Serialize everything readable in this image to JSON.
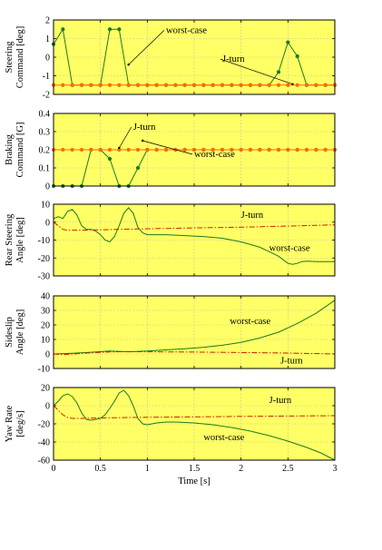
{
  "chart_data": [
    {
      "type": "line",
      "ylabel": [
        "Steering",
        "Command [deg]"
      ],
      "ylim": [
        -2,
        2
      ],
      "yticks": [
        "2",
        "1",
        "0",
        "-1",
        "-2"
      ],
      "grid": true,
      "series": [
        {
          "name": "worst-case",
          "color": "#1e7a1e",
          "markers": true,
          "x": [
            0,
            0.1,
            0.2,
            0.3,
            0.4,
            0.5,
            0.6,
            0.7,
            0.8,
            0.9,
            1.0,
            1.1,
            1.2,
            1.3,
            1.4,
            1.5,
            1.6,
            1.7,
            1.8,
            1.9,
            2.0,
            2.1,
            2.2,
            2.3,
            2.4,
            2.5,
            2.6,
            2.7,
            2.8,
            2.9,
            3.0
          ],
          "y": [
            0.7,
            1.5,
            -1.5,
            -1.5,
            -1.5,
            -1.5,
            1.5,
            1.5,
            -1.5,
            -1.5,
            -1.5,
            -1.5,
            -1.5,
            -1.5,
            -1.5,
            -1.5,
            -1.5,
            -1.5,
            -1.5,
            -1.5,
            -1.5,
            -1.5,
            -1.5,
            -1.5,
            -0.8,
            0.8,
            0.05,
            -1.5,
            -1.5,
            -1.5,
            -1.5
          ]
        },
        {
          "name": "J-turn",
          "color": "#ff6a00",
          "markers": true,
          "x": [
            0,
            0.1,
            0.2,
            0.3,
            0.4,
            0.5,
            0.6,
            0.7,
            0.8,
            0.9,
            1.0,
            1.1,
            1.2,
            1.3,
            1.4,
            1.5,
            1.6,
            1.7,
            1.8,
            1.9,
            2.0,
            2.1,
            2.2,
            2.3,
            2.4,
            2.5,
            2.6,
            2.7,
            2.8,
            2.9,
            3.0
          ],
          "y": [
            -1.5,
            -1.5,
            -1.5,
            -1.5,
            -1.5,
            -1.5,
            -1.5,
            -1.5,
            -1.5,
            -1.5,
            -1.5,
            -1.5,
            -1.5,
            -1.5,
            -1.5,
            -1.5,
            -1.5,
            -1.5,
            -1.5,
            -1.5,
            -1.5,
            -1.5,
            -1.5,
            -1.5,
            -1.5,
            -1.5,
            -1.5,
            -1.5,
            -1.5,
            -1.5,
            -1.5
          ]
        }
      ],
      "annotations": [
        {
          "text": "worst-case",
          "x": 1.2,
          "y": 1.3,
          "ax": 0.8,
          "ay": -0.4
        },
        {
          "text": "J-turn",
          "x": 1.8,
          "y": -0.25,
          "ax": 2.55,
          "ay": -1.45
        }
      ]
    },
    {
      "type": "line",
      "ylabel": [
        "Braking",
        "Command [G]"
      ],
      "ylim": [
        0,
        0.4
      ],
      "yticks": [
        "0.4",
        "0.3",
        "0.2",
        "0.1",
        "0"
      ],
      "grid": true,
      "series": [
        {
          "name": "worst-case",
          "color": "#1e7a1e",
          "markers": true,
          "x": [
            0,
            0.1,
            0.2,
            0.3,
            0.4,
            0.5,
            0.6,
            0.7,
            0.8,
            0.9,
            1.0,
            1.1,
            1.2,
            1.3,
            1.4,
            1.5,
            1.6,
            1.7,
            1.8,
            1.9,
            2.0,
            2.1,
            2.2,
            2.3,
            2.4,
            2.5,
            2.6,
            2.7,
            2.8,
            2.9,
            3.0
          ],
          "y": [
            0,
            0,
            0,
            0,
            0.2,
            0.2,
            0.15,
            0,
            0,
            0.1,
            0.2,
            0.2,
            0.2,
            0.2,
            0.2,
            0.2,
            0.2,
            0.2,
            0.2,
            0.2,
            0.2,
            0.2,
            0.2,
            0.2,
            0.2,
            0.2,
            0.2,
            0.2,
            0.2,
            0.2,
            0.2
          ]
        },
        {
          "name": "J-turn",
          "color": "#ff6a00",
          "markers": true,
          "x": [
            0,
            0.1,
            0.2,
            0.3,
            0.4,
            0.5,
            0.6,
            0.7,
            0.8,
            0.9,
            1.0,
            1.1,
            1.2,
            1.3,
            1.4,
            1.5,
            1.6,
            1.7,
            1.8,
            1.9,
            2.0,
            2.1,
            2.2,
            2.3,
            2.4,
            2.5,
            2.6,
            2.7,
            2.8,
            2.9,
            3.0
          ],
          "y": [
            0.2,
            0.2,
            0.2,
            0.2,
            0.2,
            0.2,
            0.2,
            0.2,
            0.2,
            0.2,
            0.2,
            0.2,
            0.2,
            0.2,
            0.2,
            0.2,
            0.2,
            0.2,
            0.2,
            0.2,
            0.2,
            0.2,
            0.2,
            0.2,
            0.2,
            0.2,
            0.2,
            0.2,
            0.2,
            0.2,
            0.2
          ]
        }
      ],
      "annotations": [
        {
          "text": "J-turn",
          "x": 0.85,
          "y": 0.31,
          "ax": 0.7,
          "ay": 0.21
        },
        {
          "text": "worst-case",
          "x": 1.5,
          "y": 0.16,
          "ax": 0.95,
          "ay": 0.25
        }
      ]
    },
    {
      "type": "line",
      "ylabel": [
        "Rear Steering",
        "Angle [deg]"
      ],
      "ylim": [
        -30,
        10
      ],
      "yticks": [
        "10",
        "0",
        "-10",
        "-20",
        "-30"
      ],
      "grid": true,
      "series": [
        {
          "name": "worst-case",
          "color": "#1e7a1e",
          "style": "solid",
          "x": [
            0,
            0.05,
            0.1,
            0.15,
            0.2,
            0.25,
            0.3,
            0.35,
            0.4,
            0.45,
            0.5,
            0.55,
            0.6,
            0.65,
            0.7,
            0.75,
            0.8,
            0.85,
            0.9,
            0.95,
            1.0,
            1.1,
            1.2,
            1.4,
            1.6,
            1.8,
            2.0,
            2.1,
            2.2,
            2.3,
            2.4,
            2.5,
            2.55,
            2.6,
            2.65,
            2.7,
            2.8,
            2.9,
            3.0
          ],
          "y": [
            2,
            3,
            2,
            6,
            7,
            4,
            -2,
            -4,
            -4,
            -5,
            -7,
            -10,
            -11,
            -8,
            -2,
            5,
            8,
            5,
            -3,
            -6,
            -7,
            -7,
            -7,
            -7.5,
            -8,
            -9,
            -11,
            -12.5,
            -14,
            -16.5,
            -19,
            -23,
            -23.5,
            -23,
            -22,
            -21.8,
            -22,
            -22,
            -22
          ]
        },
        {
          "name": "J-turn",
          "color": "#cc2200",
          "style": "dashdot",
          "x": [
            0,
            0.05,
            0.1,
            0.15,
            0.2,
            0.3,
            0.5,
            0.7,
            0.9,
            1.2,
            1.5,
            2.0,
            2.5,
            3.0
          ],
          "y": [
            0,
            -2,
            -4,
            -4.5,
            -4.5,
            -4.5,
            -4.3,
            -4,
            -3.8,
            -3.5,
            -3.2,
            -2.8,
            -2.2,
            -1.5
          ]
        }
      ],
      "annotations": [
        {
          "text": "J-turn",
          "x": 2.0,
          "y": 2.5
        },
        {
          "text": "worst-case",
          "x": 2.3,
          "y": -16
        }
      ]
    },
    {
      "type": "line",
      "ylabel": [
        "Sideslip",
        "Angle [deg]"
      ],
      "ylim": [
        -10,
        40
      ],
      "yticks": [
        "40",
        "30",
        "20",
        "10",
        "0",
        "-10"
      ],
      "grid": true,
      "series": [
        {
          "name": "worst-case",
          "color": "#1e7a1e",
          "style": "solid",
          "x": [
            0,
            0.2,
            0.4,
            0.6,
            0.8,
            1.0,
            1.2,
            1.4,
            1.6,
            1.8,
            2.0,
            2.2,
            2.4,
            2.6,
            2.8,
            3.0
          ],
          "y": [
            0,
            0.5,
            1.2,
            2,
            1.5,
            2,
            2.8,
            3.6,
            4.6,
            6,
            8,
            11,
            15,
            21,
            28,
            37
          ]
        },
        {
          "name": "J-turn",
          "color": "#cc2200",
          "style": "dashdot",
          "x": [
            0,
            0.1,
            0.2,
            0.4,
            0.6,
            0.8,
            1.0,
            1.5,
            2.0,
            2.5,
            3.0
          ],
          "y": [
            0,
            -0.5,
            0,
            0.8,
            1.4,
            1.6,
            1.5,
            1.3,
            1.0,
            0.6,
            0
          ]
        }
      ],
      "annotations": [
        {
          "text": "worst-case",
          "x": 1.88,
          "y": 20.5
        },
        {
          "text": "J-turn",
          "x": 2.42,
          "y": -6.5
        }
      ]
    },
    {
      "type": "line",
      "ylabel": [
        "Yaw Rate",
        "[deg/s]"
      ],
      "ylim": [
        -60,
        20
      ],
      "yticks": [
        "20",
        "0",
        "-20",
        "-40",
        "-60"
      ],
      "xlim": [
        0,
        3
      ],
      "xticks": [
        "0",
        "0.5",
        "1",
        "1.5",
        "2",
        "2.5",
        "3"
      ],
      "xlabel": "Time [s]",
      "grid": true,
      "series": [
        {
          "name": "worst-case",
          "color": "#1e7a1e",
          "style": "solid",
          "x": [
            0,
            0.05,
            0.1,
            0.15,
            0.2,
            0.25,
            0.3,
            0.35,
            0.4,
            0.45,
            0.5,
            0.55,
            0.6,
            0.65,
            0.7,
            0.75,
            0.8,
            0.85,
            0.9,
            0.95,
            1.0,
            1.1,
            1.2,
            1.3,
            1.5,
            1.7,
            1.9,
            2.1,
            2.3,
            2.5,
            2.7,
            2.85,
            3.0
          ],
          "y": [
            0,
            5,
            11,
            13,
            10,
            3,
            -8,
            -15,
            -16,
            -15,
            -14,
            -10,
            -3,
            5,
            14,
            17,
            11,
            0,
            -14,
            -20,
            -21,
            -19,
            -18,
            -18,
            -19,
            -21,
            -24,
            -28,
            -33,
            -39,
            -46,
            -52,
            -60
          ]
        },
        {
          "name": "J-turn",
          "color": "#cc2200",
          "style": "dashdot",
          "x": [
            0,
            0.05,
            0.1,
            0.15,
            0.2,
            0.3,
            0.5,
            0.8,
            1.0,
            1.5,
            2.0,
            2.5,
            3.0
          ],
          "y": [
            0,
            -5,
            -10,
            -13,
            -14,
            -14,
            -13.5,
            -13,
            -12.8,
            -12.3,
            -11.8,
            -11.4,
            -11
          ]
        }
      ],
      "annotations": [
        {
          "text": "J-turn",
          "x": 2.3,
          "y": 3
        },
        {
          "text": "worst-case",
          "x": 1.6,
          "y": -38
        }
      ]
    }
  ]
}
